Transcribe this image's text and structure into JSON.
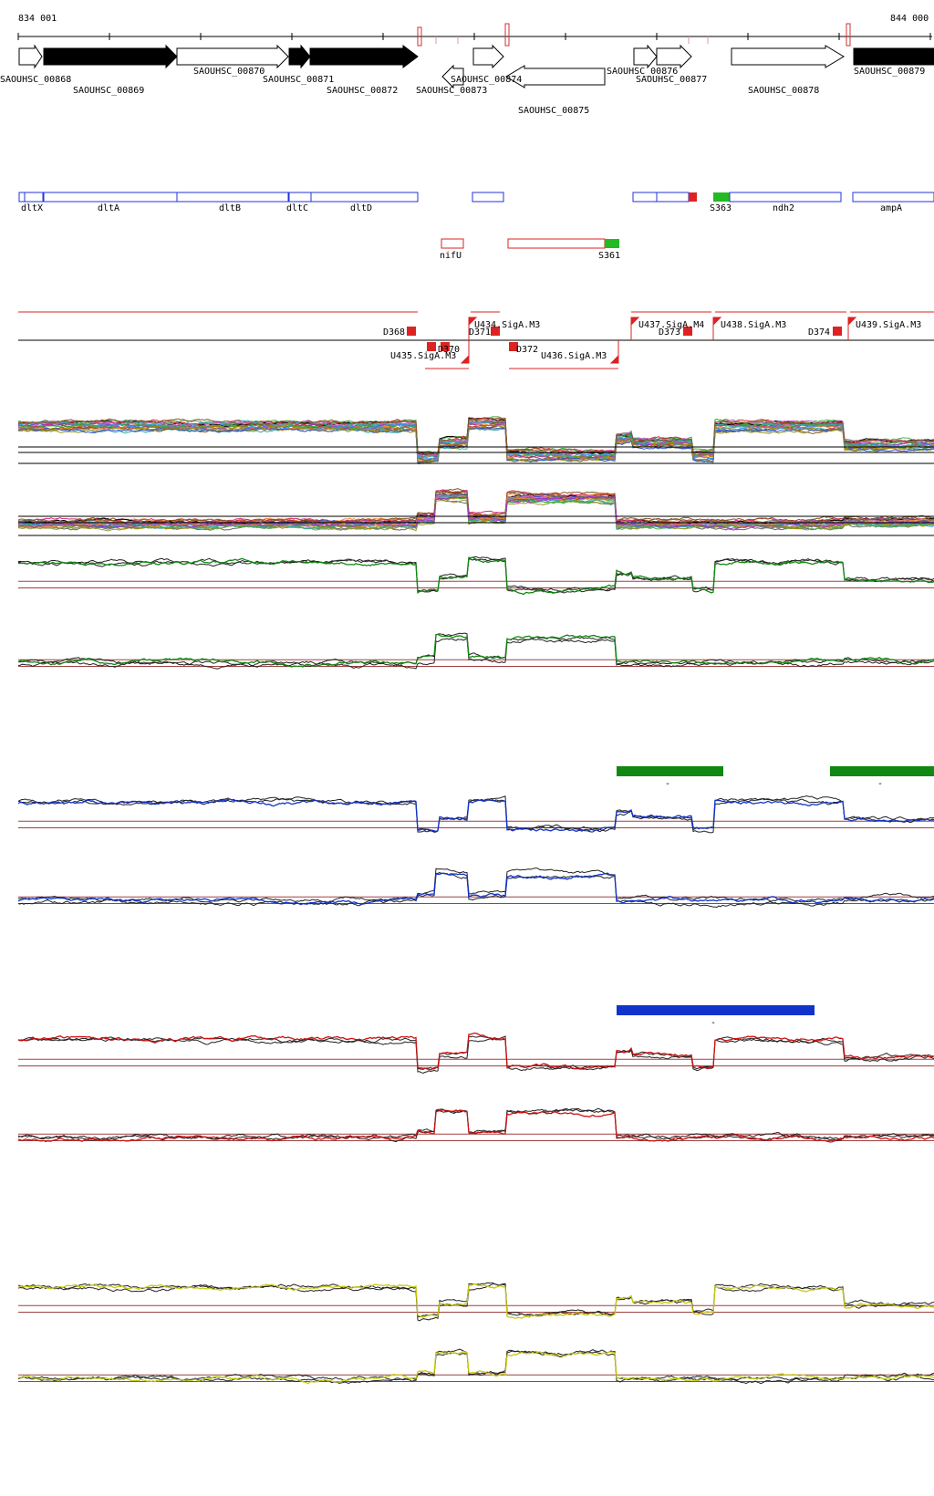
{
  "coords": {
    "start_label": "834 001",
    "end_label": "844 000"
  },
  "colors": {
    "gene_black": "#000000",
    "annotation_blue": "#2233dd",
    "rna_red": "#dd2222",
    "highlight_green": "#22bb22",
    "group_green": "#118811",
    "group_blue": "#1133cc",
    "group_red": "#cc1111",
    "group_yellow": "#dddd11",
    "threshold_brown": "#a04040"
  },
  "genes": [
    {
      "id": "SAOUHSC_00868"
    },
    {
      "id": "SAOUHSC_00869"
    },
    {
      "id": "SAOUHSC_00870"
    },
    {
      "id": "SAOUHSC_00871"
    },
    {
      "id": "SAOUHSC_00872"
    },
    {
      "id": "SAOUHSC_00873"
    },
    {
      "id": "SAOUHSC_00874"
    },
    {
      "id": "SAOUHSC_00875"
    },
    {
      "id": "SAOUHSC_00876"
    },
    {
      "id": "SAOUHSC_00877"
    },
    {
      "id": "SAOUHSC_00878"
    },
    {
      "id": "SAOUHSC_00879"
    }
  ],
  "annotations": [
    "dltX",
    "dltA",
    "dltB",
    "dltC",
    "dltD",
    "S363",
    "ndh2",
    "ampA"
  ],
  "rna_features": [
    "nifU",
    "S361"
  ],
  "regulatory": [
    "D368",
    "U434.SigA.M3",
    "D371",
    "U435.SigA.M3",
    "D370",
    "D372",
    "U436.SigA.M3",
    "U437.SigA.M4",
    "D373",
    "U438.SigA.M3",
    "D374",
    "U439.SigA.M3"
  ],
  "separators": [
    "-",
    "-",
    "-"
  ]
}
